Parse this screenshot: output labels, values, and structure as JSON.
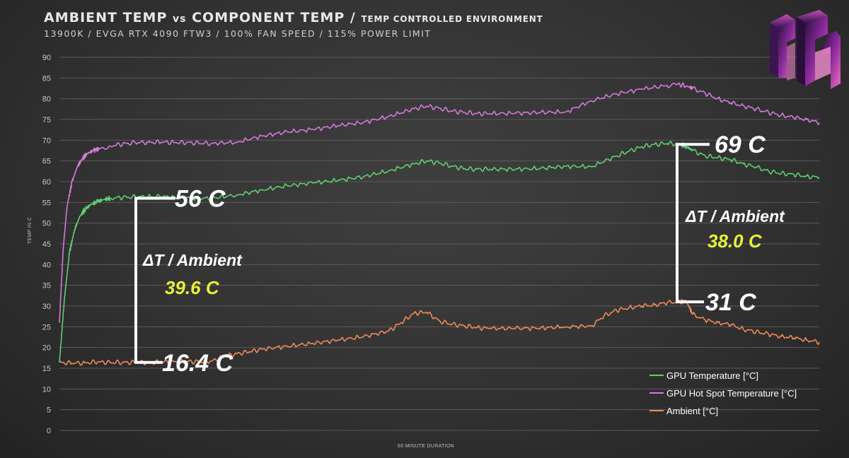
{
  "header": {
    "title_main": "AMBIENT TEMP ",
    "title_vs": "vs",
    "title_component": " COMPONENT TEMP / ",
    "title_small": "TEMP CONTROLLED ENVIRONMENT",
    "subtitle": "13900K / EVGA RTX 4090 FTW3 / 100% FAN SPEED / 115% POWER LIMIT"
  },
  "logo": {
    "name": "tpc-logo-icon",
    "colors": [
      "#6a1a8a",
      "#e14fa6",
      "#1b0e2e"
    ]
  },
  "chart_data": {
    "type": "line",
    "xlabel": "60 MINUTE DURATION",
    "ylabel": "TEMP IN C",
    "ylim": [
      0,
      90
    ],
    "yticks": [
      0,
      5,
      10,
      15,
      20,
      25,
      30,
      35,
      40,
      45,
      50,
      55,
      60,
      65,
      70,
      75,
      80,
      85,
      90
    ],
    "xlim": [
      0,
      60
    ],
    "grid": true,
    "legend_position": "bottom-right",
    "series": [
      {
        "name": "GPU Temperature [°C]",
        "color": "#5fcf6e",
        "x": [
          0,
          0.4,
          0.8,
          1.2,
          1.6,
          2,
          2.5,
          3,
          3.5,
          4,
          5,
          6,
          7,
          8,
          9,
          10,
          12,
          14,
          16,
          18,
          20,
          22,
          24,
          26,
          28,
          29,
          30,
          31,
          32,
          33,
          34,
          36,
          38,
          40,
          42,
          44,
          45,
          46,
          47,
          48,
          49,
          49.5,
          50,
          51,
          52,
          53,
          54,
          55,
          56,
          57,
          58,
          59,
          60
        ],
        "values": [
          16.4,
          32,
          43,
          48.5,
          51.5,
          53.3,
          54.5,
          55.2,
          55.7,
          56,
          56.2,
          56.3,
          56.4,
          56.4,
          56.3,
          56,
          56,
          56.8,
          58,
          59,
          59.7,
          60.3,
          61.2,
          62.6,
          64.3,
          65,
          64.5,
          63.7,
          63.1,
          63,
          63,
          63,
          63.2,
          63.7,
          63.6,
          66.2,
          67.4,
          68.4,
          69,
          69.2,
          69,
          68.5,
          67.5,
          66.2,
          65.8,
          65.3,
          64.3,
          63.5,
          62.5,
          62,
          61.7,
          61.3,
          61
        ]
      },
      {
        "name": "GPU Hot Spot Temperature [°C]",
        "color": "#d37ad8",
        "x": [
          0,
          0.3,
          0.6,
          1,
          1.4,
          1.8,
          2.2,
          2.7,
          3.2,
          4,
          5,
          6,
          7,
          8,
          9,
          10,
          11,
          12,
          14,
          16,
          18,
          20,
          22,
          24,
          26,
          28,
          29,
          30,
          31,
          32,
          33,
          34,
          36,
          38,
          40,
          42,
          44,
          46,
          48,
          48.8,
          49.5,
          50,
          51,
          52,
          53,
          54,
          55,
          56,
          57,
          58,
          59,
          60
        ],
        "values": [
          26,
          44,
          54,
          60,
          63.5,
          65.5,
          66.8,
          67.5,
          68,
          68.6,
          69.1,
          69.4,
          69.5,
          69.5,
          69.5,
          69.4,
          69.3,
          69.2,
          69.5,
          71,
          72,
          72.6,
          73.5,
          74.3,
          75.7,
          77.6,
          78.2,
          77.7,
          77,
          76.7,
          76.4,
          76.4,
          76.5,
          76.7,
          76.8,
          79.5,
          81.2,
          82.3,
          83.2,
          83.5,
          83.1,
          82.5,
          81.3,
          80,
          79,
          78.3,
          77.5,
          76.7,
          76,
          75.5,
          75,
          74.2
        ]
      },
      {
        "name": "Ambient [°C]",
        "color": "#ee8a57",
        "x": [
          0,
          1,
          2,
          3,
          4,
          5,
          6,
          7,
          8,
          9,
          10,
          11,
          12,
          13,
          14,
          15,
          16,
          18,
          20,
          22,
          24,
          26,
          27,
          28,
          29,
          30,
          31,
          32,
          33,
          34,
          36,
          38,
          40,
          42,
          43,
          44,
          45,
          46,
          47,
          48,
          49,
          49.5,
          50,
          51,
          52,
          53,
          54,
          55,
          56,
          57,
          58,
          59,
          60
        ],
        "values": [
          16.4,
          16.2,
          16.3,
          16.5,
          16.4,
          16.4,
          16.4,
          16.4,
          16.5,
          16.6,
          16.6,
          16.6,
          16.7,
          17.8,
          18.5,
          19,
          19.6,
          20.3,
          21,
          21.8,
          22.6,
          24,
          26,
          28.3,
          28.5,
          26.4,
          25.6,
          25.2,
          24.8,
          24.6,
          24.6,
          24.7,
          25,
          25.2,
          27.6,
          29,
          29.6,
          30,
          30.3,
          30.8,
          31,
          31.2,
          28,
          26.6,
          26,
          25.5,
          24.4,
          23.8,
          23.2,
          22.7,
          22.3,
          21.8,
          21.3
        ]
      }
    ],
    "annotations": [
      {
        "high_label": "56 C",
        "low_label": "16.4 C",
        "delta_label": "ΔT / Ambient",
        "delta_value": "39.6 C",
        "x": 6,
        "high": 56,
        "low": 16.4
      },
      {
        "high_label": "69 C",
        "low_label": "31 C",
        "delta_label": "ΔT / Ambient",
        "delta_value": "38.0 C",
        "x": 48.8,
        "high": 69,
        "low": 31
      }
    ]
  }
}
